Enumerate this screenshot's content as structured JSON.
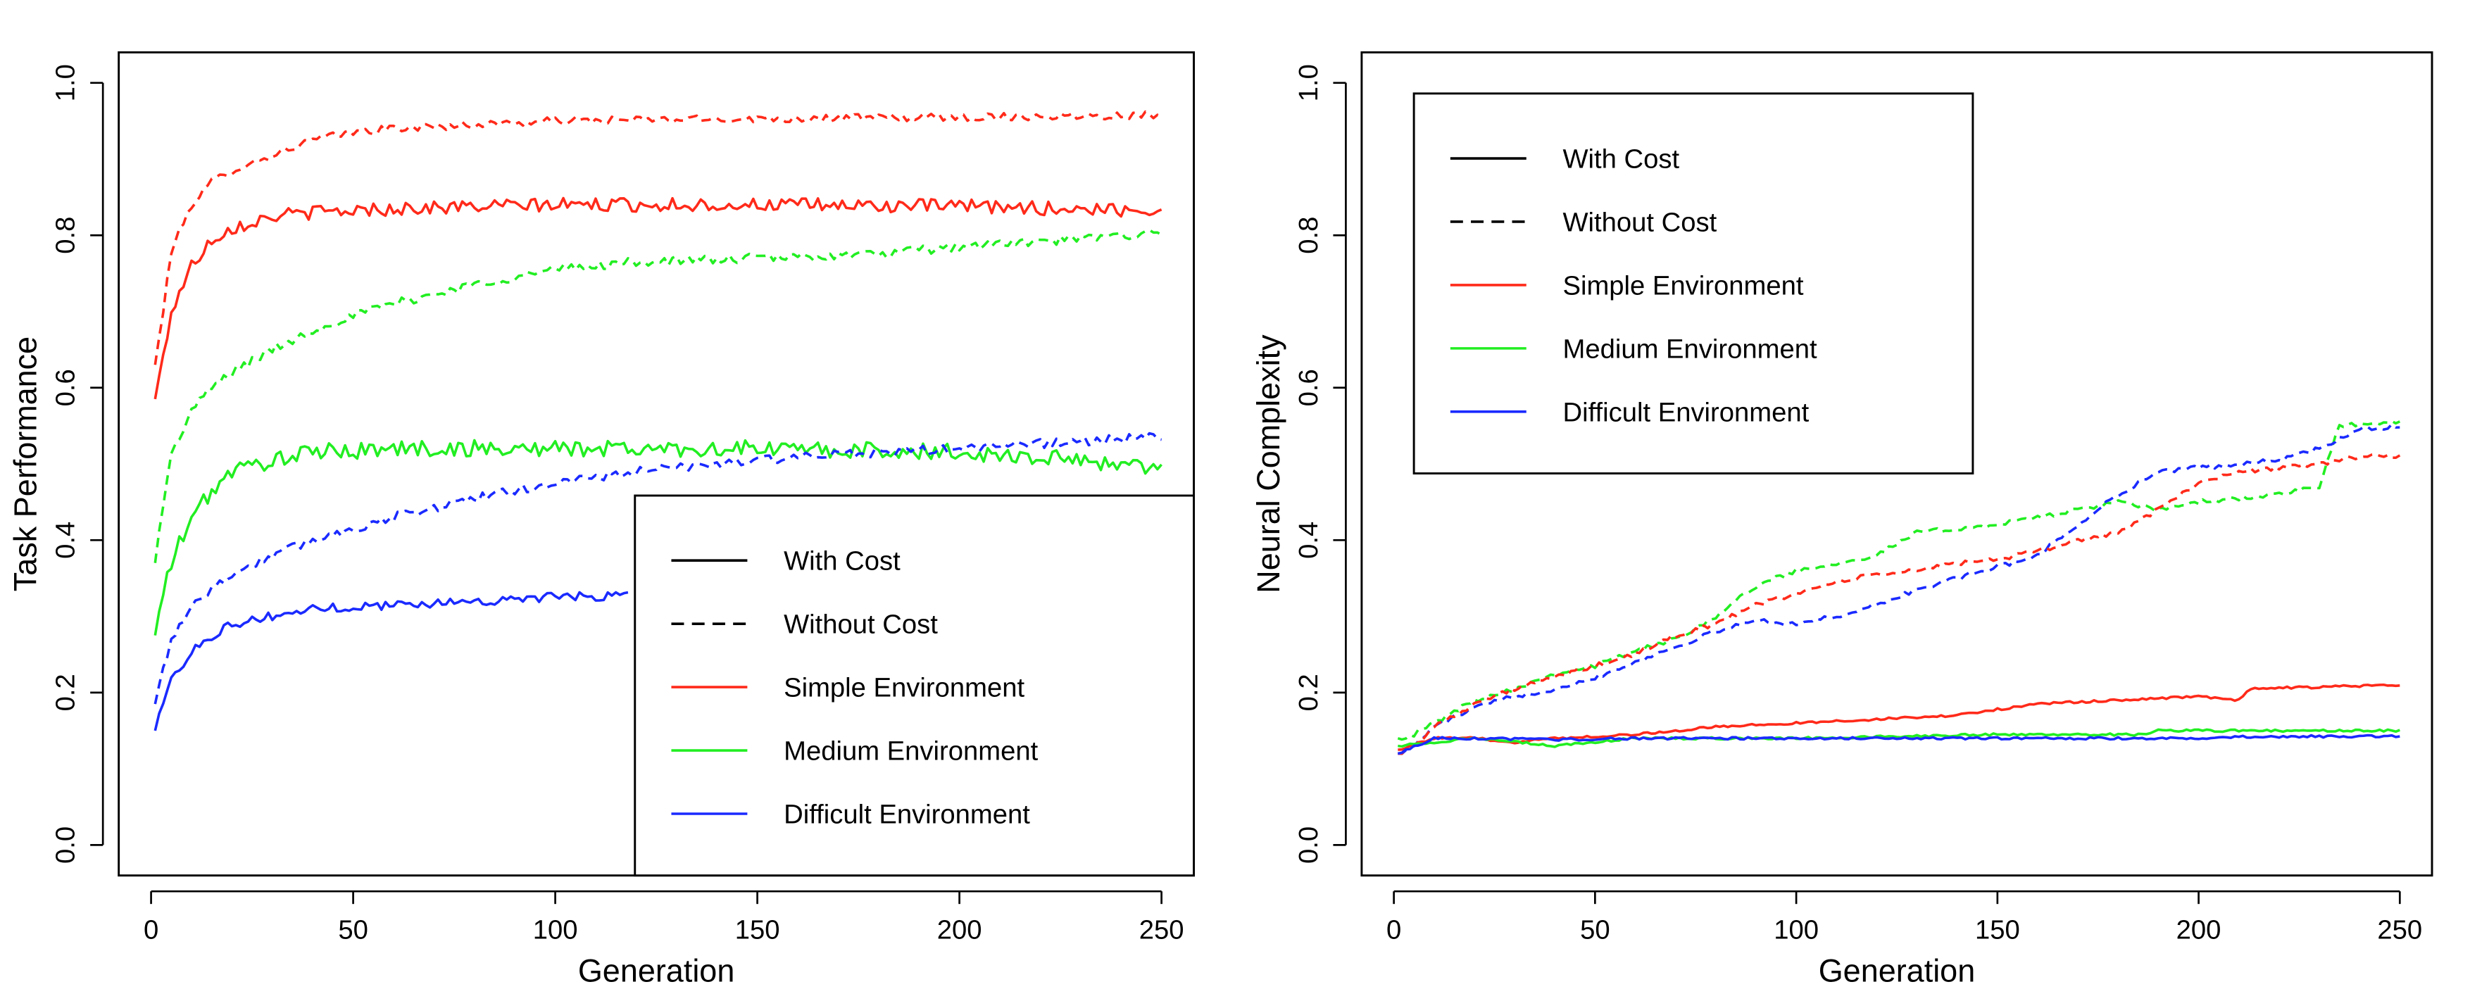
{
  "chart_data": [
    {
      "type": "line",
      "xlabel": "Generation",
      "ylabel": "Task Performance",
      "xlim": [
        -8,
        258
      ],
      "ylim": [
        -0.04,
        1.04
      ],
      "x_ticks": [
        0,
        50,
        100,
        150,
        200,
        250
      ],
      "y_ticks": [
        0.0,
        0.2,
        0.4,
        0.6,
        0.8,
        1.0
      ],
      "x_tick_labels": [
        "0",
        "50",
        "100",
        "150",
        "200",
        "250"
      ],
      "y_tick_labels": [
        "0.0",
        "0.2",
        "0.4",
        "0.6",
        "0.8",
        "1.0"
      ],
      "grid": false,
      "legend_position": "bottom-right",
      "legend": [
        {
          "label": "With Cost",
          "color": "#000000",
          "dash": "solid"
        },
        {
          "label": "Without Cost",
          "color": "#000000",
          "dash": "dashed"
        },
        {
          "label": "Simple Environment",
          "color": "#ff2a1a",
          "dash": "solid"
        },
        {
          "label": "Medium Environment",
          "color": "#22ee22",
          "dash": "solid"
        },
        {
          "label": "Difficult Environment",
          "color": "#1a2aff",
          "dash": "solid"
        }
      ],
      "series": [
        {
          "environment": "Simple Environment",
          "cost": "Without Cost",
          "color": "#ff2a1a",
          "dash": "dashed",
          "noise": 0.005,
          "points": [
            [
              1,
              0.63
            ],
            [
              3,
              0.7
            ],
            [
              5,
              0.78
            ],
            [
              10,
              0.84
            ],
            [
              15,
              0.87
            ],
            [
              20,
              0.885
            ],
            [
              30,
              0.905
            ],
            [
              40,
              0.925
            ],
            [
              50,
              0.935
            ],
            [
              60,
              0.94
            ],
            [
              80,
              0.945
            ],
            [
              100,
              0.95
            ],
            [
              150,
              0.953
            ],
            [
              200,
              0.955
            ],
            [
              250,
              0.958
            ]
          ]
        },
        {
          "environment": "Simple Environment",
          "cost": "With Cost",
          "color": "#ff2a1a",
          "dash": "solid",
          "noise": 0.009,
          "points": [
            [
              1,
              0.585
            ],
            [
              3,
              0.64
            ],
            [
              5,
              0.7
            ],
            [
              10,
              0.76
            ],
            [
              15,
              0.795
            ],
            [
              20,
              0.81
            ],
            [
              30,
              0.825
            ],
            [
              40,
              0.83
            ],
            [
              60,
              0.835
            ],
            [
              100,
              0.84
            ],
            [
              150,
              0.84
            ],
            [
              200,
              0.838
            ],
            [
              250,
              0.832
            ]
          ]
        },
        {
          "environment": "Medium Environment",
          "cost": "Without Cost",
          "color": "#22ee22",
          "dash": "dashed",
          "noise": 0.006,
          "points": [
            [
              1,
              0.37
            ],
            [
              3,
              0.45
            ],
            [
              5,
              0.51
            ],
            [
              10,
              0.57
            ],
            [
              15,
              0.6
            ],
            [
              20,
              0.62
            ],
            [
              30,
              0.65
            ],
            [
              40,
              0.675
            ],
            [
              50,
              0.695
            ],
            [
              60,
              0.71
            ],
            [
              80,
              0.735
            ],
            [
              100,
              0.755
            ],
            [
              120,
              0.765
            ],
            [
              150,
              0.77
            ],
            [
              180,
              0.775
            ],
            [
              200,
              0.785
            ],
            [
              230,
              0.795
            ],
            [
              250,
              0.805
            ]
          ]
        },
        {
          "environment": "Medium Environment",
          "cost": "With Cost",
          "color": "#22ee22",
          "dash": "solid",
          "noise": 0.011,
          "points": [
            [
              1,
              0.275
            ],
            [
              3,
              0.33
            ],
            [
              5,
              0.37
            ],
            [
              10,
              0.43
            ],
            [
              15,
              0.465
            ],
            [
              20,
              0.49
            ],
            [
              30,
              0.505
            ],
            [
              40,
              0.515
            ],
            [
              60,
              0.52
            ],
            [
              100,
              0.52
            ],
            [
              150,
              0.52
            ],
            [
              200,
              0.515
            ],
            [
              230,
              0.505
            ],
            [
              250,
              0.495
            ]
          ]
        },
        {
          "environment": "Difficult Environment",
          "cost": "Without Cost",
          "color": "#1a2aff",
          "dash": "dashed",
          "noise": 0.006,
          "points": [
            [
              1,
              0.185
            ],
            [
              3,
              0.23
            ],
            [
              5,
              0.27
            ],
            [
              10,
              0.315
            ],
            [
              15,
              0.335
            ],
            [
              20,
              0.355
            ],
            [
              30,
              0.38
            ],
            [
              40,
              0.4
            ],
            [
              50,
              0.415
            ],
            [
              60,
              0.43
            ],
            [
              80,
              0.455
            ],
            [
              100,
              0.475
            ],
            [
              120,
              0.49
            ],
            [
              150,
              0.505
            ],
            [
              180,
              0.515
            ],
            [
              200,
              0.52
            ],
            [
              230,
              0.53
            ],
            [
              250,
              0.535
            ]
          ]
        },
        {
          "environment": "Difficult Environment",
          "cost": "With Cost",
          "color": "#1a2aff",
          "dash": "solid",
          "noise": 0.006,
          "points": [
            [
              1,
              0.15
            ],
            [
              3,
              0.19
            ],
            [
              5,
              0.215
            ],
            [
              10,
              0.255
            ],
            [
              15,
              0.275
            ],
            [
              20,
              0.29
            ],
            [
              30,
              0.3
            ],
            [
              40,
              0.31
            ],
            [
              60,
              0.315
            ],
            [
              80,
              0.32
            ],
            [
              100,
              0.325
            ],
            [
              118,
              0.328
            ]
          ]
        }
      ]
    },
    {
      "type": "line",
      "xlabel": "Generation",
      "ylabel": "Neural Complexity",
      "xlim": [
        -8,
        258
      ],
      "ylim": [
        -0.04,
        1.04
      ],
      "x_ticks": [
        0,
        50,
        100,
        150,
        200,
        250
      ],
      "y_ticks": [
        0.0,
        0.2,
        0.4,
        0.6,
        0.8,
        1.0
      ],
      "x_tick_labels": [
        "0",
        "50",
        "100",
        "150",
        "200",
        "250"
      ],
      "y_tick_labels": [
        "0.0",
        "0.2",
        "0.4",
        "0.6",
        "0.8",
        "1.0"
      ],
      "grid": false,
      "legend_position": "top-left",
      "legend": [
        {
          "label": "With Cost",
          "color": "#000000",
          "dash": "solid"
        },
        {
          "label": "Without Cost",
          "color": "#000000",
          "dash": "dashed"
        },
        {
          "label": "Simple Environment",
          "color": "#ff2a1a",
          "dash": "solid"
        },
        {
          "label": "Medium Environment",
          "color": "#22ee22",
          "dash": "solid"
        },
        {
          "label": "Difficult Environment",
          "color": "#1a2aff",
          "dash": "solid"
        }
      ],
      "series": [
        {
          "environment": "Medium Environment",
          "cost": "Without Cost",
          "color": "#22ee22",
          "dash": "dashed",
          "noise": 0.003,
          "points": [
            [
              1,
              0.14
            ],
            [
              5,
              0.145
            ],
            [
              10,
              0.16
            ],
            [
              20,
              0.19
            ],
            [
              30,
              0.205
            ],
            [
              40,
              0.225
            ],
            [
              50,
              0.235
            ],
            [
              60,
              0.255
            ],
            [
              70,
              0.27
            ],
            [
              80,
              0.3
            ],
            [
              90,
              0.34
            ],
            [
              100,
              0.36
            ],
            [
              110,
              0.37
            ],
            [
              120,
              0.38
            ],
            [
              130,
              0.41
            ],
            [
              140,
              0.415
            ],
            [
              150,
              0.42
            ],
            [
              160,
              0.43
            ],
            [
              170,
              0.44
            ],
            [
              180,
              0.45
            ],
            [
              190,
              0.44
            ],
            [
              200,
              0.45
            ],
            [
              220,
              0.46
            ],
            [
              230,
              0.47
            ],
            [
              235,
              0.55
            ],
            [
              250,
              0.555
            ]
          ]
        },
        {
          "environment": "Difficult Environment",
          "cost": "Without Cost",
          "color": "#1a2aff",
          "dash": "dashed",
          "noise": 0.003,
          "points": [
            [
              1,
              0.12
            ],
            [
              5,
              0.13
            ],
            [
              10,
              0.155
            ],
            [
              20,
              0.18
            ],
            [
              30,
              0.195
            ],
            [
              40,
              0.205
            ],
            [
              50,
              0.22
            ],
            [
              60,
              0.24
            ],
            [
              70,
              0.26
            ],
            [
              80,
              0.28
            ],
            [
              90,
              0.295
            ],
            [
              100,
              0.29
            ],
            [
              110,
              0.3
            ],
            [
              120,
              0.315
            ],
            [
              130,
              0.335
            ],
            [
              140,
              0.35
            ],
            [
              150,
              0.365
            ],
            [
              160,
              0.38
            ],
            [
              170,
              0.42
            ],
            [
              180,
              0.46
            ],
            [
              190,
              0.49
            ],
            [
              200,
              0.495
            ],
            [
              210,
              0.5
            ],
            [
              220,
              0.505
            ],
            [
              230,
              0.52
            ],
            [
              240,
              0.545
            ],
            [
              250,
              0.55
            ]
          ]
        },
        {
          "environment": "Simple Environment",
          "cost": "Without Cost",
          "color": "#ff2a1a",
          "dash": "dashed",
          "noise": 0.003,
          "points": [
            [
              1,
              0.12
            ],
            [
              5,
              0.13
            ],
            [
              10,
              0.155
            ],
            [
              20,
              0.185
            ],
            [
              30,
              0.205
            ],
            [
              40,
              0.22
            ],
            [
              50,
              0.235
            ],
            [
              60,
              0.25
            ],
            [
              70,
              0.275
            ],
            [
              80,
              0.29
            ],
            [
              90,
              0.315
            ],
            [
              100,
              0.33
            ],
            [
              110,
              0.345
            ],
            [
              120,
              0.355
            ],
            [
              130,
              0.36
            ],
            [
              140,
              0.37
            ],
            [
              150,
              0.375
            ],
            [
              160,
              0.385
            ],
            [
              170,
              0.4
            ],
            [
              180,
              0.41
            ],
            [
              190,
              0.44
            ],
            [
              200,
              0.475
            ],
            [
              210,
              0.49
            ],
            [
              220,
              0.495
            ],
            [
              230,
              0.5
            ],
            [
              240,
              0.51
            ],
            [
              250,
              0.51
            ]
          ]
        },
        {
          "environment": "Simple Environment",
          "cost": "With Cost",
          "color": "#ff2a1a",
          "dash": "solid",
          "noise": 0.0015,
          "points": [
            [
              1,
              0.125
            ],
            [
              10,
              0.14
            ],
            [
              20,
              0.14
            ],
            [
              30,
              0.135
            ],
            [
              40,
              0.14
            ],
            [
              60,
              0.145
            ],
            [
              80,
              0.155
            ],
            [
              100,
              0.16
            ],
            [
              120,
              0.165
            ],
            [
              140,
              0.17
            ],
            [
              150,
              0.178
            ],
            [
              160,
              0.185
            ],
            [
              180,
              0.19
            ],
            [
              200,
              0.195
            ],
            [
              210,
              0.19
            ],
            [
              213,
              0.205
            ],
            [
              250,
              0.21
            ]
          ]
        },
        {
          "environment": "Medium Environment",
          "cost": "With Cost",
          "color": "#22ee22",
          "dash": "solid",
          "noise": 0.0015,
          "points": [
            [
              1,
              0.13
            ],
            [
              10,
              0.135
            ],
            [
              20,
              0.14
            ],
            [
              40,
              0.13
            ],
            [
              60,
              0.14
            ],
            [
              100,
              0.14
            ],
            [
              150,
              0.145
            ],
            [
              187,
              0.145
            ],
            [
              190,
              0.15
            ],
            [
              250,
              0.15
            ]
          ]
        },
        {
          "environment": "Difficult Environment",
          "cost": "With Cost",
          "color": "#1a2aff",
          "dash": "solid",
          "noise": 0.0015,
          "points": [
            [
              1,
              0.12
            ],
            [
              10,
              0.14
            ],
            [
              20,
              0.14
            ],
            [
              40,
              0.138
            ],
            [
              60,
              0.14
            ],
            [
              100,
              0.14
            ],
            [
              150,
              0.14
            ],
            [
              200,
              0.14
            ],
            [
              210,
              0.142
            ],
            [
              250,
              0.143
            ]
          ]
        }
      ]
    }
  ]
}
